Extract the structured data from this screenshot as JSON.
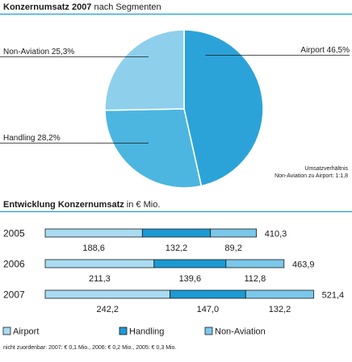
{
  "chart_data": [
    {
      "type": "pie",
      "title": "Konzernumsatz 2007",
      "title_suffix": " nach Segmenten",
      "slices": [
        {
          "name": "Airport",
          "value": 46.5,
          "label": "Airport 46,5%",
          "color": "#2ba3d8"
        },
        {
          "name": "Handling",
          "value": 28.2,
          "label": "Handling 28,2%",
          "color": "#4cb6e0"
        },
        {
          "name": "Non-Aviation",
          "value": 25.3,
          "label": "Non-Aviation 25,3%",
          "color": "#8ecfec"
        }
      ],
      "annotation": [
        "Umsatzverhältnis",
        "Non-Aviation zu Airport: 1:1,8"
      ]
    },
    {
      "type": "bar",
      "orientation": "horizontal",
      "stacked": true,
      "title": "Entwicklung Konzernumsatz",
      "title_suffix": " in € Mio.",
      "categories": [
        "2005",
        "2006",
        "2007"
      ],
      "totals": [
        410.3,
        463.9,
        521.4
      ],
      "totals_labels": [
        "410,3",
        "463,9",
        "521,4"
      ],
      "series": [
        {
          "name": "Airport",
          "values": [
            188.6,
            211.3,
            242.2
          ],
          "labels": [
            "188,6",
            "211,3",
            "242,2"
          ],
          "color": "#a9dcf3"
        },
        {
          "name": "Handling",
          "values": [
            132.2,
            139.6,
            147.0
          ],
          "labels": [
            "132,2",
            "139,6",
            "147,0"
          ],
          "color": "#1c9ad3"
        },
        {
          "name": "Non-Aviation",
          "values": [
            89.2,
            112.8,
            132.2
          ],
          "labels": [
            "89,2",
            "112,8",
            "132,2"
          ],
          "color": "#7ac7ea"
        }
      ],
      "legend": [
        "Airport",
        "Handling",
        "Non-Aviation"
      ],
      "footnote": "nicht zuordenbar: 2007: € 0,1 Mio., 2006: € 0,2 Mio., 2005: € 0,3 Mio."
    }
  ],
  "colors": {
    "rule": "#1a9fdc",
    "text": "#1a1a1a",
    "bar_outline": "#1a1a1a"
  }
}
